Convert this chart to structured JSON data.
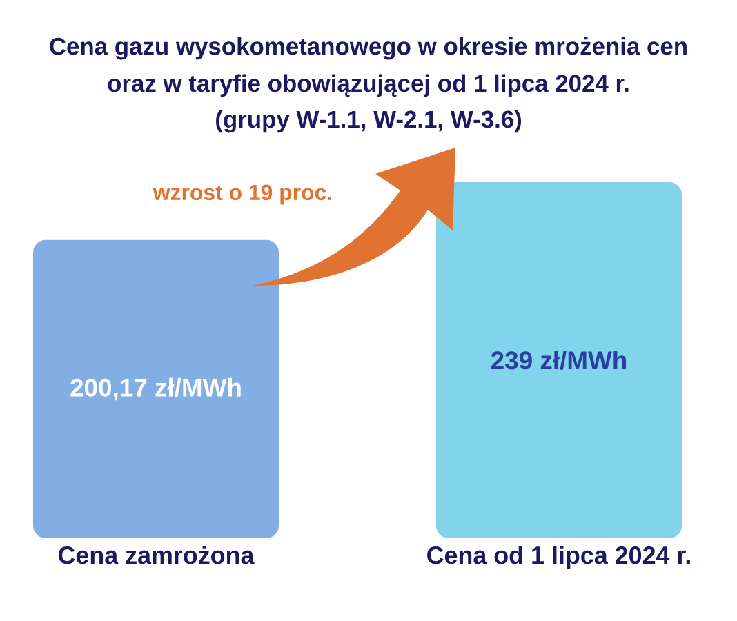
{
  "chart_data": {
    "type": "bar",
    "title": "Cena gazu wysokometanowego w okresie mrożenia cen oraz w taryfie obowiązującej od 1 lipca 2024 r.",
    "subtitle": "(grupy W-1.1, W-2.1, W-3.6)",
    "categories": [
      "Cena zamrożona",
      "Cena od 1 lipca 2024 r."
    ],
    "values": [
      200.17,
      239
    ],
    "colors": [
      "#82aee3",
      "#82d4ed"
    ],
    "value_labels": [
      "200,17 zł/MWh",
      "239 zł/MWh"
    ],
    "ylim": [
      0,
      239
    ],
    "tick_labels": "x",
    "annotations": [
      "wzrost o 19 proc."
    ]
  }
}
